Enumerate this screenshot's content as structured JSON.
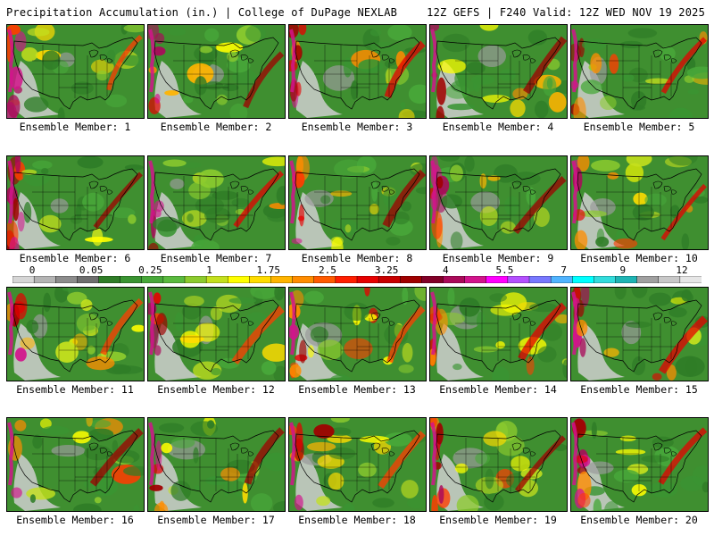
{
  "header": {
    "left_title": "Precipitation Accumulation (in.) | College of DuPage NEXLAB",
    "right_title": "12Z GEFS | F240 Valid: 12Z WED NOV 19 2025"
  },
  "members": [
    {
      "label": "Ensemble Member: 1",
      "seed": 11
    },
    {
      "label": "Ensemble Member: 2",
      "seed": 23
    },
    {
      "label": "Ensemble Member: 3",
      "seed": 37
    },
    {
      "label": "Ensemble Member: 4",
      "seed": 41
    },
    {
      "label": "Ensemble Member: 5",
      "seed": 53
    },
    {
      "label": "Ensemble Member: 6",
      "seed": 67
    },
    {
      "label": "Ensemble Member: 7",
      "seed": 71
    },
    {
      "label": "Ensemble Member: 8",
      "seed": 83
    },
    {
      "label": "Ensemble Member: 9",
      "seed": 97
    },
    {
      "label": "Ensemble Member: 10",
      "seed": 101
    },
    {
      "label": "Ensemble Member: 11",
      "seed": 113
    },
    {
      "label": "Ensemble Member: 12",
      "seed": 127
    },
    {
      "label": "Ensemble Member: 13",
      "seed": 131
    },
    {
      "label": "Ensemble Member: 14",
      "seed": 149
    },
    {
      "label": "Ensemble Member: 15",
      "seed": 151
    },
    {
      "label": "Ensemble Member: 16",
      "seed": 163
    },
    {
      "label": "Ensemble Member: 17",
      "seed": 173
    },
    {
      "label": "Ensemble Member: 18",
      "seed": 181
    },
    {
      "label": "Ensemble Member: 19",
      "seed": 191
    },
    {
      "label": "Ensemble Member: 20",
      "seed": 199
    }
  ],
  "colorbar": {
    "tick_labels": [
      "0",
      "0.05",
      "0.25",
      "1",
      "1.75",
      "2.5",
      "3.25",
      "4",
      "5.5",
      "7",
      "9",
      "12"
    ],
    "colors": [
      "#d6d6d6",
      "#b4b4b4",
      "#8c8c8c",
      "#6e6e6e",
      "#2f7d27",
      "#3a9432",
      "#48a83a",
      "#5aba3f",
      "#8ccb2e",
      "#c4e01e",
      "#ffff00",
      "#ffdc00",
      "#ffb400",
      "#ff8c00",
      "#ff5a00",
      "#ff1e00",
      "#e60000",
      "#c80000",
      "#a00000",
      "#820028",
      "#aa0a5a",
      "#d2148c",
      "#ff00ff",
      "#b450ff",
      "#7878ff",
      "#50b4ff",
      "#00ffff",
      "#32dcdc",
      "#1eb4b4",
      "#a0a0a0",
      "#c8c8c8",
      "#e6e6e6"
    ]
  }
}
